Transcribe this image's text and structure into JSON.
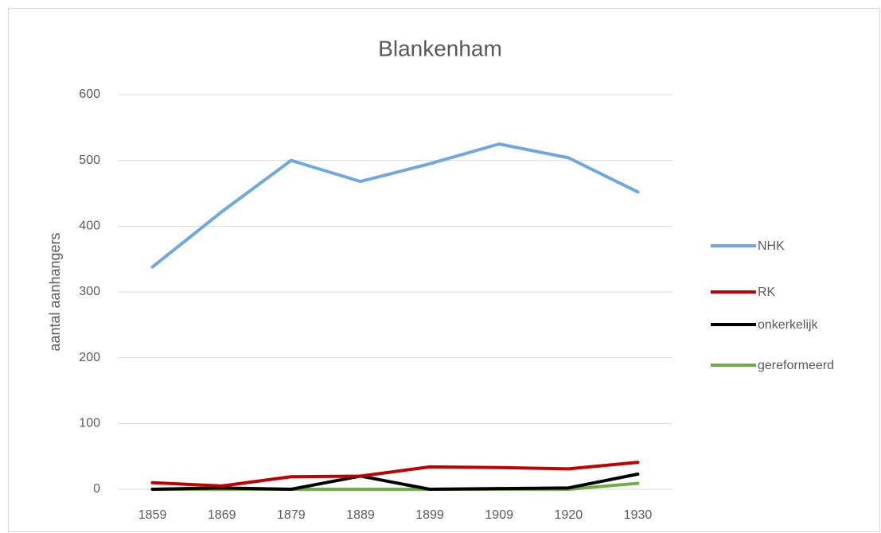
{
  "chart_data": {
    "type": "line",
    "title": "Blankenham",
    "y_label": "aantal aanhangers",
    "categories": [
      "1859",
      "1869",
      "1879",
      "1889",
      "1899",
      "1909",
      "1920",
      "1930"
    ],
    "series": [
      {
        "name": "NHK",
        "color": "#6fa8dc",
        "values": [
          338,
          422,
          500,
          468,
          495,
          525,
          504,
          452
        ]
      },
      {
        "name": "RK",
        "color": "#c00000",
        "values": [
          10,
          5,
          19,
          20,
          34,
          33,
          31,
          41
        ]
      },
      {
        "name": "onkerkelijk",
        "color": "#000000",
        "values": [
          0,
          2,
          0,
          20,
          0,
          1,
          2,
          23
        ]
      },
      {
        "name": "gereformeerd",
        "color": "#70ad47",
        "values": [
          0,
          0,
          0,
          0,
          0,
          0,
          0,
          9
        ]
      }
    ],
    "ylim": [
      0,
      600
    ],
    "yticks": [
      0,
      100,
      200,
      300,
      400,
      500,
      600
    ],
    "grid": true,
    "legend": "right"
  }
}
